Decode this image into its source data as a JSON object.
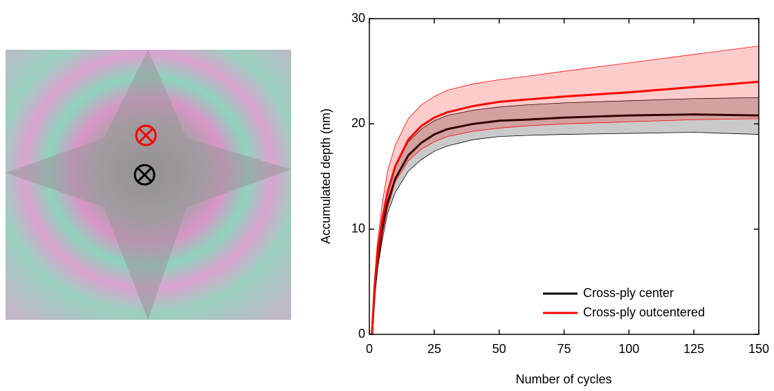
{
  "chart_data": {
    "type": "line",
    "xlabel": "Number of cycles",
    "ylabel": "Accumulated  depth (nm)",
    "x": [
      1,
      2,
      3,
      5,
      7,
      10,
      15,
      20,
      25,
      30,
      40,
      50,
      60,
      75,
      100,
      125,
      150
    ],
    "series": [
      {
        "name": "Cross-ply center",
        "color": "#000000",
        "band_color": "#c4c4c4",
        "values": [
          0,
          4,
          6.5,
          10,
          12.5,
          14.8,
          17,
          18.2,
          19,
          19.5,
          20,
          20.3,
          20.4,
          20.6,
          20.8,
          20.9,
          20.8
        ],
        "lower": [
          0,
          3.5,
          6,
          9,
          11.5,
          13.5,
          15.5,
          16.6,
          17.4,
          17.9,
          18.5,
          18.8,
          18.9,
          19,
          19.1,
          19.2,
          19
        ],
        "upper": [
          0,
          4.5,
          7,
          11,
          13.5,
          16,
          18.3,
          19.5,
          20.3,
          20.8,
          21.3,
          21.6,
          21.8,
          22,
          22.2,
          22.4,
          22.5
        ]
      },
      {
        "name": "Cross-ply outcentered",
        "color": "#ff0000",
        "band_color": "#ff0000",
        "values": [
          0,
          4.5,
          7.5,
          11,
          13.5,
          16,
          18.5,
          19.8,
          20.6,
          21.1,
          21.7,
          22.1,
          22.3,
          22.6,
          23,
          23.5,
          24
        ],
        "lower": [
          0,
          4,
          6.5,
          9.5,
          12,
          14.5,
          16.5,
          17.6,
          18.3,
          18.8,
          19.3,
          19.6,
          19.8,
          20,
          20.2,
          20.4,
          20.5
        ],
        "upper": [
          0,
          5,
          8.5,
          12.5,
          15.5,
          18,
          20.5,
          21.8,
          22.6,
          23.2,
          23.8,
          24.2,
          24.5,
          25,
          25.8,
          26.6,
          27.4
        ]
      }
    ],
    "xlim": [
      0,
      150
    ],
    "xticks": [
      0,
      25,
      50,
      75,
      100,
      125,
      150
    ],
    "ylim": [
      0,
      30
    ],
    "yticks": [
      0,
      10,
      20,
      30
    ],
    "legend": "lower right"
  }
}
